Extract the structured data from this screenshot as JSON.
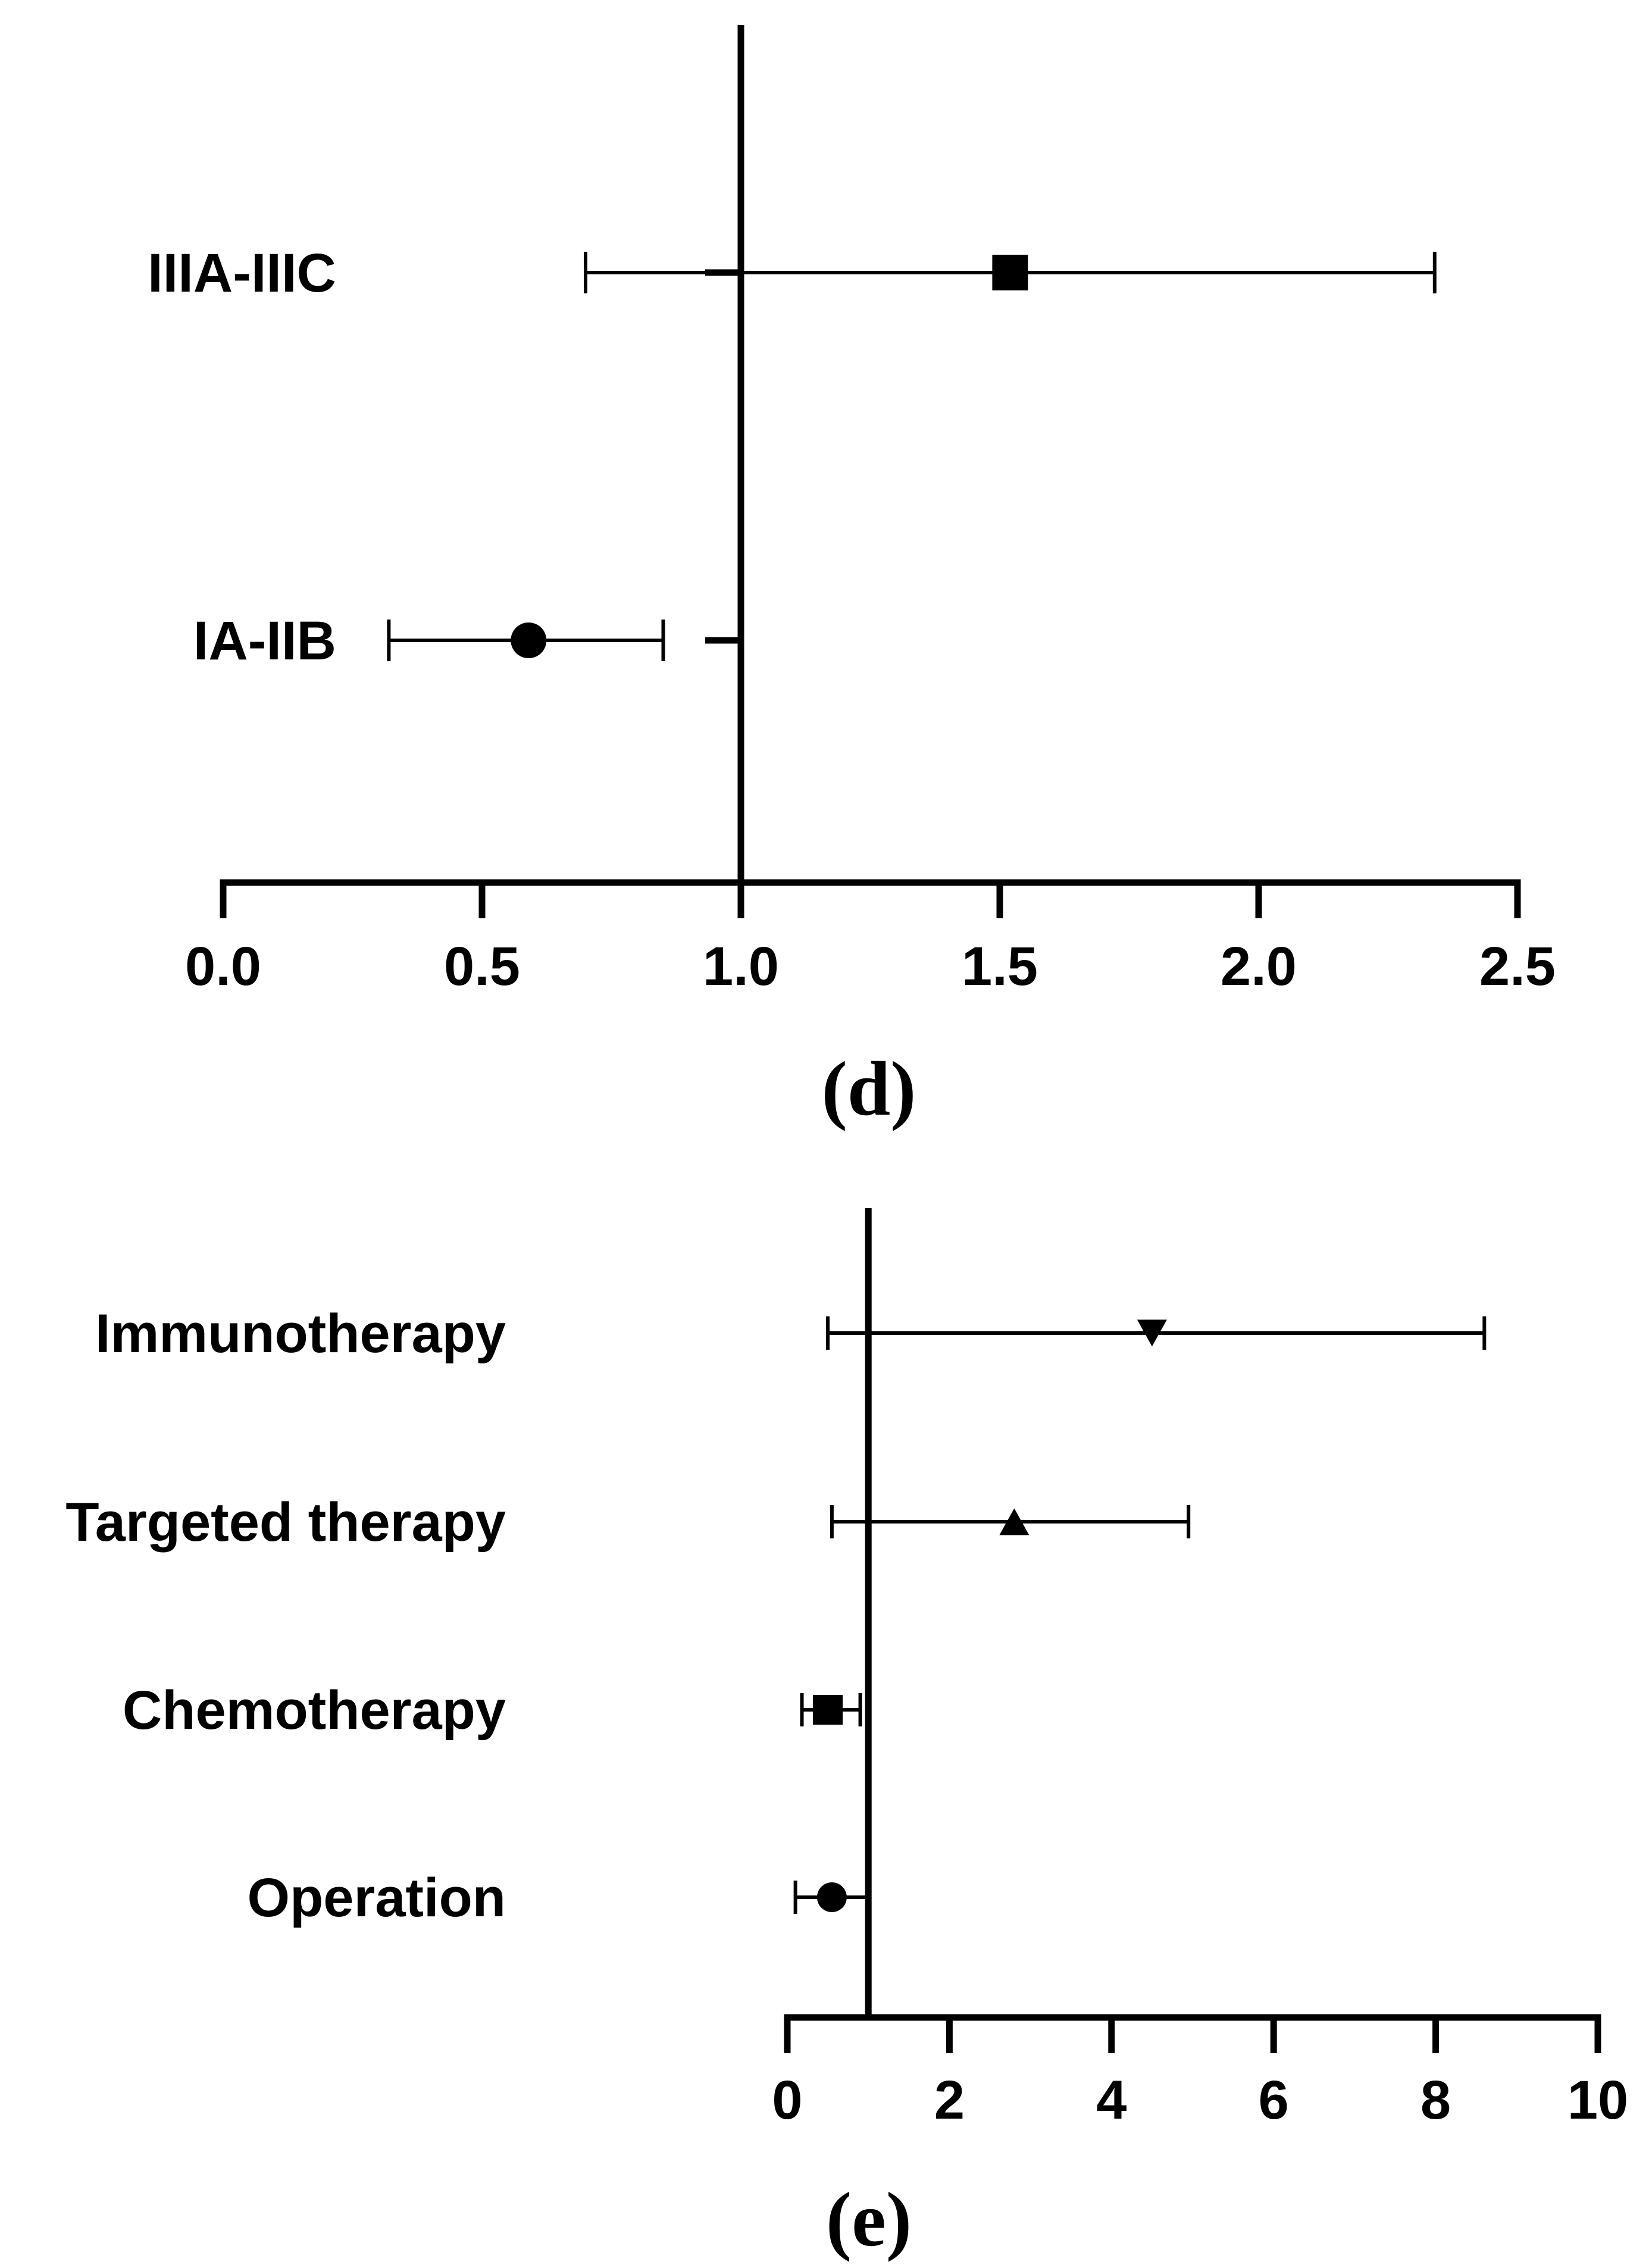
{
  "chart_data": [
    {
      "type": "forest",
      "panel_label": "(d)",
      "reference_line": 1.0,
      "xlim": [
        0,
        2.5
      ],
      "xticks": [
        "0.0",
        "0.5",
        "1.0",
        "1.5",
        "2.0",
        "2.5"
      ],
      "xtick_values": [
        0,
        0.5,
        1.0,
        1.5,
        2.0,
        2.5
      ],
      "categories": [
        "IIIA-IIIC",
        "IA-IIB"
      ],
      "points": [
        {
          "label": "IIIA-IIIC",
          "estimate": 1.52,
          "ci_low": 0.7,
          "ci_high": 2.34,
          "marker": "square"
        },
        {
          "label": "IA-IIB",
          "estimate": 0.59,
          "ci_low": 0.32,
          "ci_high": 0.85,
          "marker": "circle"
        }
      ]
    },
    {
      "type": "forest",
      "panel_label": "(e)",
      "reference_line": 1.0,
      "xlim": [
        0,
        10
      ],
      "xticks": [
        "0",
        "2",
        "4",
        "6",
        "8",
        "10"
      ],
      "xtick_values": [
        0,
        2,
        4,
        6,
        8,
        10
      ],
      "categories": [
        "Immunotherapy",
        "Targeted therapy",
        "Chemotherapy",
        "Operation"
      ],
      "points": [
        {
          "label": "Immunotherapy",
          "estimate": 4.5,
          "ci_low": 0.5,
          "ci_high": 8.6,
          "marker": "triangle-down"
        },
        {
          "label": "Targeted therapy",
          "estimate": 2.8,
          "ci_low": 0.55,
          "ci_high": 4.95,
          "marker": "triangle-up"
        },
        {
          "label": "Chemotherapy",
          "estimate": 0.5,
          "ci_low": 0.18,
          "ci_high": 0.9,
          "marker": "square"
        },
        {
          "label": "Operation",
          "estimate": 0.55,
          "ci_low": 0.1,
          "ci_high": 1.0,
          "marker": "circle"
        }
      ]
    }
  ]
}
